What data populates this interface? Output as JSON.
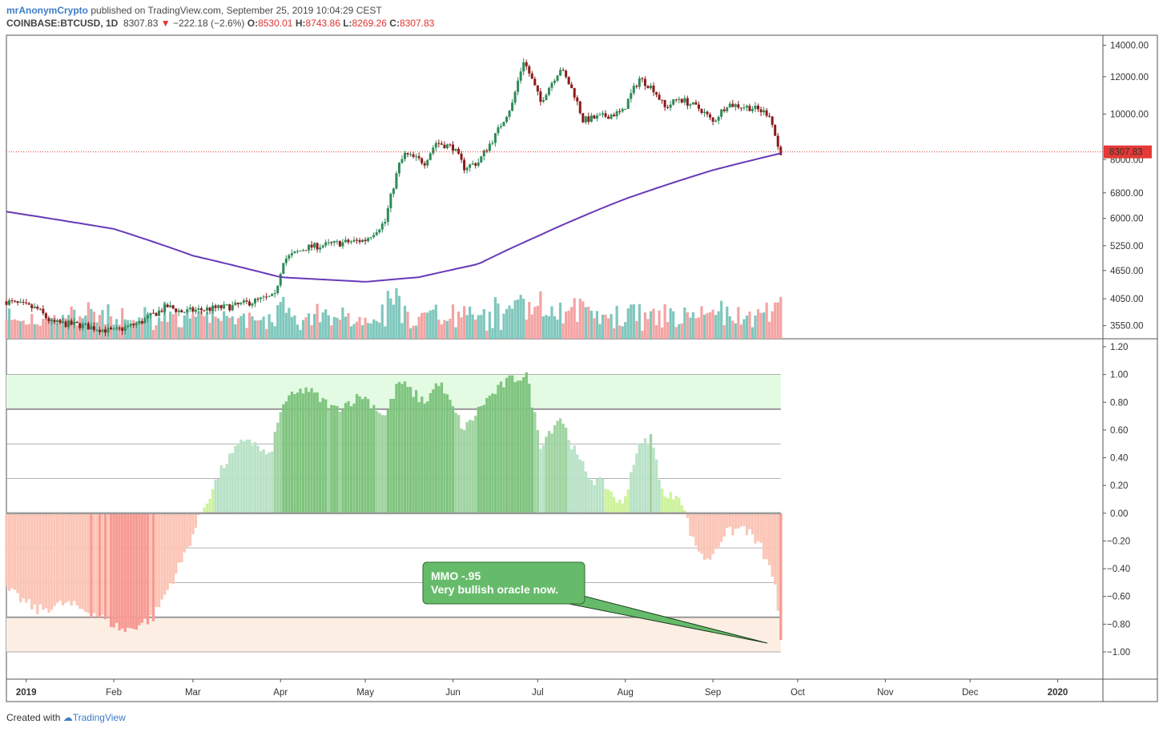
{
  "header": {
    "user": "mrAnonymCrypto",
    "published_text": " published on TradingView.com, September 25, 2019 10:04:29 CEST",
    "symbol": "COINBASE:BTCUSD, 1D",
    "last": "8307.83",
    "change": "−222.18 (−2.6%)",
    "open_label": "O:",
    "open": "8530.01",
    "high_label": "H:",
    "high": "8743.86",
    "low_label": "L:",
    "low": "8269.26",
    "close_label": "C:",
    "close": "8307.83"
  },
  "footer": {
    "created_with": "Created with",
    "brand": "TradingView"
  },
  "colors": {
    "up": "#2e8b57",
    "down": "#8b1a1a",
    "ma": "#673ab7",
    "vol_up": "#7fc7bd",
    "vol_down": "#f4a3a3",
    "price_line": "#e53935",
    "annotation": "#66bb6a"
  },
  "annotation": {
    "line1": "MMO  -.95",
    "line2": "Very bullish oracle now."
  },
  "chart_data": [
    {
      "type": "candlestick",
      "series": [
        {
          "name": "COINBASE:BTCUSD",
          "y_points": [
            [
              "2018-12-25",
              4000
            ],
            [
              "2019-01-05",
              3850
            ],
            [
              "2019-01-10",
              3600
            ],
            [
              "2019-01-20",
              3560
            ],
            [
              "2019-02-01",
              3450
            ],
            [
              "2019-02-10",
              3600
            ],
            [
              "2019-02-20",
              3900
            ],
            [
              "2019-02-25",
              3800
            ],
            [
              "2019-03-15",
              3900
            ],
            [
              "2019-03-30",
              4100
            ],
            [
              "2019-04-02",
              4900
            ],
            [
              "2019-04-10",
              5200
            ],
            [
              "2019-04-20",
              5300
            ],
            [
              "2019-05-01",
              5400
            ],
            [
              "2019-05-08",
              5900
            ],
            [
              "2019-05-13",
              7800
            ],
            [
              "2019-05-15",
              8200
            ],
            [
              "2019-05-22",
              7900
            ],
            [
              "2019-05-26",
              8700
            ],
            [
              "2019-06-01",
              8500
            ],
            [
              "2019-06-05",
              7700
            ],
            [
              "2019-06-10",
              7900
            ],
            [
              "2019-06-16",
              9000
            ],
            [
              "2019-06-22",
              10500
            ],
            [
              "2019-06-26",
              13000
            ],
            [
              "2019-06-29",
              11800
            ],
            [
              "2019-07-02",
              10600
            ],
            [
              "2019-07-09",
              12500
            ],
            [
              "2019-07-14",
              11000
            ],
            [
              "2019-07-17",
              9700
            ],
            [
              "2019-07-25",
              9900
            ],
            [
              "2019-07-31",
              10100
            ],
            [
              "2019-08-06",
              11900
            ],
            [
              "2019-08-11",
              11300
            ],
            [
              "2019-08-15",
              10300
            ],
            [
              "2019-08-20",
              10800
            ],
            [
              "2019-08-28",
              10200
            ],
            [
              "2019-09-01",
              9600
            ],
            [
              "2019-09-06",
              10500
            ],
            [
              "2019-09-15",
              10300
            ],
            [
              "2019-09-21",
              10000
            ],
            [
              "2019-09-24",
              8500
            ],
            [
              "2019-09-25",
              8307.83
            ]
          ]
        },
        {
          "name": "MA",
          "y_points": [
            [
              "2018-12-25",
              6200
            ],
            [
              "2019-02-01",
              5700
            ],
            [
              "2019-03-01",
              5000
            ],
            [
              "2019-04-01",
              4500
            ],
            [
              "2019-05-01",
              4400
            ],
            [
              "2019-05-20",
              4500
            ],
            [
              "2019-06-10",
              4800
            ],
            [
              "2019-07-01",
              5500
            ],
            [
              "2019-08-01",
              6600
            ],
            [
              "2019-09-01",
              7600
            ],
            [
              "2019-09-25",
              8250
            ]
          ]
        }
      ],
      "y_ticks": [
        "14000.00",
        "12000.00",
        "10000.00",
        "8000.00",
        "6800.00",
        "6000.00",
        "5250.00",
        "4650.00",
        "4050.00",
        "3550.00"
      ],
      "last_price_label": "8307.83",
      "y_scale": "log"
    },
    {
      "type": "area",
      "title": "",
      "series": [
        {
          "name": "",
          "y_points": [
            [
              "2018-12-25",
              -0.55
            ],
            [
              "2019-01-05",
              -0.7
            ],
            [
              "2019-01-15",
              -0.65
            ],
            [
              "2019-01-25",
              -0.72
            ],
            [
              "2019-02-05",
              -0.85
            ],
            [
              "2019-02-15",
              -0.75
            ],
            [
              "2019-02-25",
              -0.35
            ],
            [
              "2019-03-05",
              0.05
            ],
            [
              "2019-03-12",
              0.35
            ],
            [
              "2019-03-20",
              0.55
            ],
            [
              "2019-03-28",
              0.4
            ],
            [
              "2019-04-02",
              0.8
            ],
            [
              "2019-04-10",
              0.9
            ],
            [
              "2019-04-20",
              0.75
            ],
            [
              "2019-04-30",
              0.85
            ],
            [
              "2019-05-08",
              0.7
            ],
            [
              "2019-05-13",
              0.95
            ],
            [
              "2019-05-22",
              0.8
            ],
            [
              "2019-05-27",
              0.95
            ],
            [
              "2019-06-05",
              0.6
            ],
            [
              "2019-06-12",
              0.8
            ],
            [
              "2019-06-20",
              0.95
            ],
            [
              "2019-06-27",
              1.0
            ],
            [
              "2019-07-02",
              0.5
            ],
            [
              "2019-07-09",
              0.7
            ],
            [
              "2019-07-15",
              0.4
            ],
            [
              "2019-07-20",
              0.25
            ],
            [
              "2019-07-25",
              0.2
            ],
            [
              "2019-07-31",
              0.05
            ],
            [
              "2019-08-05",
              0.45
            ],
            [
              "2019-08-10",
              0.55
            ],
            [
              "2019-08-15",
              0.1
            ],
            [
              "2019-08-20",
              0.15
            ],
            [
              "2019-08-25",
              -0.2
            ],
            [
              "2019-08-30",
              -0.35
            ],
            [
              "2019-09-05",
              -0.15
            ],
            [
              "2019-09-12",
              -0.1
            ],
            [
              "2019-09-18",
              -0.25
            ],
            [
              "2019-09-23",
              -0.5
            ],
            [
              "2019-09-25",
              -0.95
            ]
          ]
        }
      ],
      "bands": {
        "upper": [
          0.75,
          1.0
        ],
        "lower": [
          -1.0,
          -0.75
        ]
      },
      "y_ticks": [
        "1.20",
        "1.00",
        "0.80",
        "0.60",
        "0.40",
        "0.20",
        "0.00",
        "−0.20",
        "−0.40",
        "−0.60",
        "−0.80",
        "−1.00"
      ],
      "ylim": [
        -1.2,
        1.2
      ]
    }
  ],
  "x_ticks": [
    "2019",
    "Feb",
    "Mar",
    "Apr",
    "May",
    "Jun",
    "Jul",
    "Aug",
    "Sep",
    "Oct",
    "Nov",
    "Dec",
    "2020"
  ]
}
